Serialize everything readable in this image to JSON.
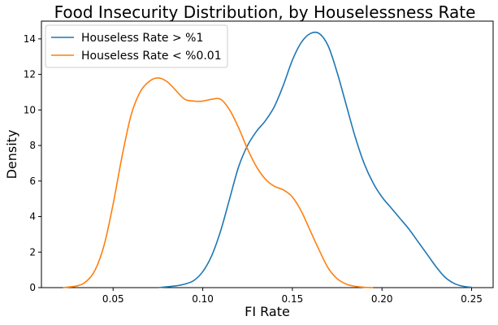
{
  "chart_data": {
    "type": "line",
    "title": "Food Insecurity Distribution, by Houselessness Rate",
    "xlabel": "FI Rate",
    "ylabel": "Density",
    "xlim": [
      0.01,
      0.262
    ],
    "ylim": [
      0,
      15
    ],
    "xticks": [
      0.05,
      0.1,
      0.15,
      0.2,
      0.25
    ],
    "xtick_labels": [
      "0.05",
      "0.10",
      "0.15",
      "0.20",
      "0.25"
    ],
    "yticks": [
      0,
      2,
      4,
      6,
      8,
      10,
      12,
      14
    ],
    "ytick_labels": [
      "0",
      "2",
      "4",
      "6",
      "8",
      "10",
      "12",
      "14"
    ],
    "grid": false,
    "legend_position": "top-left",
    "series": [
      {
        "name": "Houseless Rate > %1",
        "color": "#1f77b4",
        "x": [
          0.075,
          0.085,
          0.09,
          0.095,
          0.1,
          0.105,
          0.11,
          0.115,
          0.12,
          0.125,
          0.13,
          0.135,
          0.14,
          0.145,
          0.15,
          0.155,
          0.16,
          0.165,
          0.17,
          0.175,
          0.18,
          0.185,
          0.19,
          0.195,
          0.2,
          0.205,
          0.21,
          0.215,
          0.22,
          0.225,
          0.23,
          0.235,
          0.24,
          0.245,
          0.25
        ],
        "y": [
          0.0,
          0.1,
          0.2,
          0.4,
          0.9,
          1.8,
          3.2,
          5.0,
          6.8,
          8.0,
          8.8,
          9.4,
          10.2,
          11.4,
          12.8,
          13.8,
          14.3,
          14.3,
          13.6,
          12.1,
          10.3,
          8.5,
          7.0,
          5.9,
          5.1,
          4.5,
          3.9,
          3.3,
          2.6,
          1.9,
          1.2,
          0.6,
          0.25,
          0.08,
          0.02
        ]
      },
      {
        "name": "Houseless Rate < %0.01",
        "color": "#ff7f0e",
        "x": [
          0.022,
          0.03,
          0.035,
          0.04,
          0.045,
          0.05,
          0.055,
          0.06,
          0.065,
          0.07,
          0.075,
          0.08,
          0.085,
          0.09,
          0.095,
          0.1,
          0.105,
          0.11,
          0.115,
          0.12,
          0.125,
          0.13,
          0.135,
          0.14,
          0.145,
          0.15,
          0.155,
          0.16,
          0.165,
          0.17,
          0.175,
          0.18,
          0.185,
          0.19,
          0.195
        ],
        "y": [
          0.0,
          0.1,
          0.35,
          1.0,
          2.4,
          4.7,
          7.4,
          9.7,
          11.0,
          11.6,
          11.8,
          11.6,
          11.1,
          10.6,
          10.5,
          10.5,
          10.6,
          10.6,
          10.0,
          9.0,
          7.8,
          6.8,
          6.1,
          5.7,
          5.5,
          5.1,
          4.3,
          3.2,
          2.1,
          1.1,
          0.5,
          0.2,
          0.07,
          0.02,
          0.0
        ]
      }
    ]
  }
}
